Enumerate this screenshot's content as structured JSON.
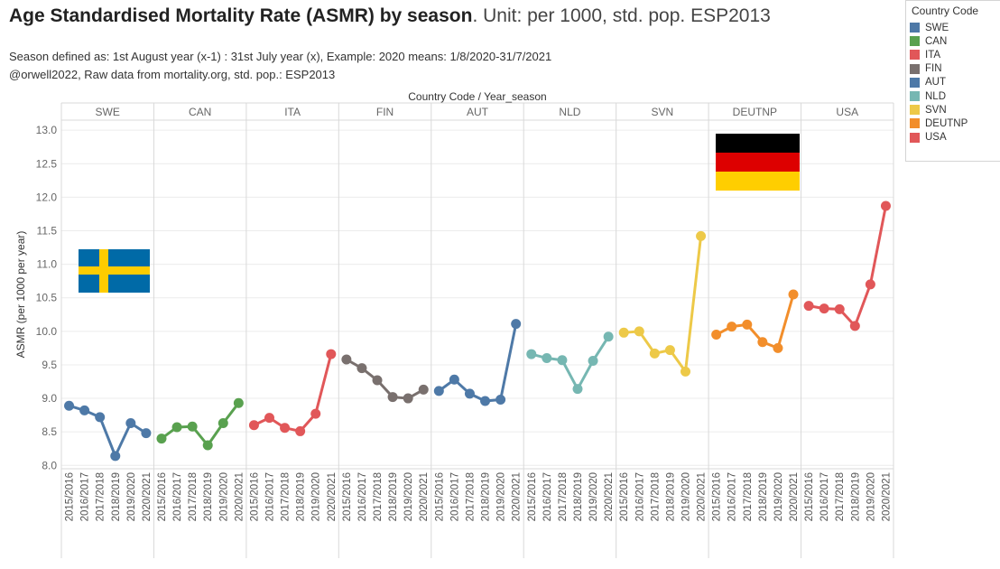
{
  "header": {
    "title_bold": "Age Standardised Mortality Rate (ASMR) by season",
    "title_rest": ". Unit: per 1000, std. pop. ESP2013",
    "sub1": "Season defined as: 1st August year (x-1) : 31st July  year (x), Example: 2020 means: 1/8/2020-31/7/2021",
    "sub2": "@orwell2022,  Raw data from mortality.org, std. pop.: ESP2013"
  },
  "legend": {
    "title": "Country Code"
  },
  "chart_data": {
    "type": "line",
    "column_header": "Country Code / Year_season",
    "ylabel": "ASMR (per 1000 per year)",
    "ylim": [
      7.95,
      13.15
    ],
    "yticks": [
      8.0,
      8.5,
      9.0,
      9.5,
      10.0,
      10.5,
      11.0,
      11.5,
      12.0,
      12.5,
      13.0
    ],
    "ytick_labels": [
      "8.0",
      "8.5",
      "9.0",
      "9.5",
      "10.0",
      "10.5",
      "11.0",
      "11.5",
      "12.0",
      "12.5",
      "13.0"
    ],
    "grid": true,
    "legend_position": "right",
    "panels": [
      {
        "name": "SWE",
        "color": "#4e79a7",
        "x": [
          "2015/2016",
          "2016/2017",
          "2017/2018",
          "2018/2019",
          "2019/2020",
          "2020/2021"
        ],
        "values": [
          8.89,
          8.82,
          8.72,
          8.14,
          8.63,
          8.48
        ]
      },
      {
        "name": "CAN",
        "color": "#59a14f",
        "x": [
          "2015/2016",
          "2016/2017",
          "2017/2018",
          "2018/2019",
          "2019/2020",
          "2020/2021"
        ],
        "values": [
          8.4,
          8.57,
          8.58,
          8.3,
          8.63,
          8.93
        ]
      },
      {
        "name": "ITA",
        "color": "#e15759",
        "x": [
          "2015/2016",
          "2016/2017",
          "2017/2018",
          "2018/2019",
          "2019/2020",
          "2020/2021"
        ],
        "values": [
          8.6,
          8.71,
          8.56,
          8.51,
          8.77,
          9.66
        ]
      },
      {
        "name": "FIN",
        "color": "#79706e",
        "x": [
          "2015/2016",
          "2016/2017",
          "2017/2018",
          "2018/2019",
          "2019/2020",
          "2020/2021"
        ],
        "values": [
          9.58,
          9.45,
          9.27,
          9.02,
          9.0,
          9.13
        ]
      },
      {
        "name": "AUT",
        "color": "#4e79a7",
        "x": [
          "2015/2016",
          "2016/2017",
          "2017/2018",
          "2018/2019",
          "2019/2020",
          "2020/2021"
        ],
        "values": [
          9.11,
          9.28,
          9.07,
          8.96,
          8.98,
          10.11
        ]
      },
      {
        "name": "NLD",
        "color": "#76b7b2",
        "x": [
          "2015/2016",
          "2016/2017",
          "2017/2018",
          "2018/2019",
          "2019/2020",
          "2020/2021"
        ],
        "values": [
          9.66,
          9.6,
          9.57,
          9.14,
          9.56,
          9.92
        ]
      },
      {
        "name": "SVN",
        "color": "#edc948",
        "x": [
          "2015/2016",
          "2016/2017",
          "2017/2018",
          "2018/2019",
          "2019/2020",
          "2020/2021"
        ],
        "values": [
          9.98,
          10.0,
          9.67,
          9.72,
          9.4,
          11.42
        ]
      },
      {
        "name": "DEUTNP",
        "color": "#f28e2b",
        "x": [
          "2015/2016",
          "2016/2017",
          "2017/2018",
          "2018/2019",
          "2019/2020",
          "2020/2021"
        ],
        "values": [
          9.95,
          10.07,
          10.1,
          9.84,
          9.75,
          10.55
        ]
      },
      {
        "name": "USA",
        "color": "#e15759",
        "x": [
          "2015/2016",
          "2016/2017",
          "2017/2018",
          "2018/2019",
          "2019/2020",
          "2020/2021"
        ],
        "values": [
          10.38,
          10.34,
          10.33,
          10.08,
          10.7,
          11.87
        ]
      }
    ]
  }
}
